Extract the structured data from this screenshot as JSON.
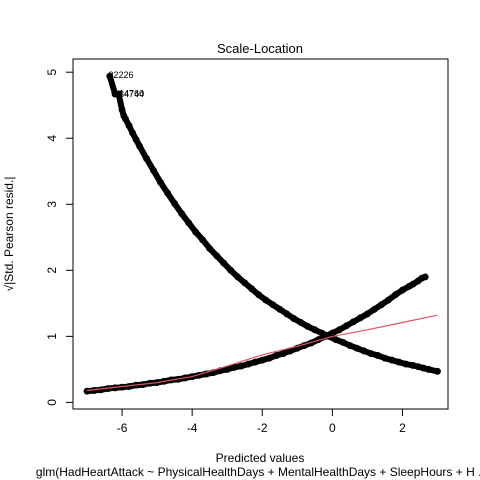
{
  "chart_data": {
    "type": "scatter",
    "title": "Scale-Location",
    "xlabel": "Predicted values",
    "ylabel": "√|Std. Pearson resid.|",
    "subtitle": "glm(HadHeartAttack ~ PhysicalHealthDays + MentalHealthDays + SleepHours + H ...",
    "xlim": [
      -7.4,
      3.3
    ],
    "ylim": [
      -0.1,
      5.2
    ],
    "x_ticks": [
      -6,
      -4,
      -2,
      0,
      2
    ],
    "y_ticks": [
      0,
      1,
      2,
      3,
      4,
      5
    ],
    "x_tick_labels": [
      "-6",
      "-4",
      "-2",
      "0",
      "2"
    ],
    "y_tick_labels": [
      "0",
      "1",
      "2",
      "3",
      "4",
      "5"
    ],
    "point_color": "#000000",
    "smooth_color": "#DF536B",
    "grid": false,
    "annotations": [
      {
        "label": "32226",
        "x": -6.5,
        "y": 4.96
      },
      {
        "label": "14760",
        "x": -6.2,
        "y": 4.68
      },
      {
        "label": "34744",
        "x": -6.2,
        "y": 4.67
      }
    ],
    "series": [
      {
        "values_xy": [
          [
            -6.35,
            4.94
          ],
          [
            -6.2,
            4.67
          ],
          [
            -6.1,
            4.67
          ],
          [
            -6.0,
            4.43
          ],
          [
            -5.95,
            4.34
          ],
          [
            -5.9,
            4.29
          ],
          [
            -5.8,
            4.19
          ],
          [
            -5.7,
            4.08
          ],
          [
            -5.6,
            3.98
          ],
          [
            -5.5,
            3.88
          ],
          [
            -5.3,
            3.69
          ],
          [
            -5.1,
            3.51
          ],
          [
            -4.9,
            3.33
          ],
          [
            -4.7,
            3.17
          ],
          [
            -4.5,
            3.01
          ],
          [
            -4.3,
            2.86
          ],
          [
            -4.1,
            2.72
          ],
          [
            -3.9,
            2.58
          ],
          [
            -3.7,
            2.46
          ],
          [
            -3.5,
            2.33
          ],
          [
            -3.3,
            2.22
          ],
          [
            -3.1,
            2.11
          ],
          [
            -2.9,
            2.0
          ],
          [
            -2.7,
            1.9
          ],
          [
            -2.5,
            1.81
          ],
          [
            -2.3,
            1.72
          ],
          [
            -2.1,
            1.63
          ],
          [
            -1.9,
            1.55
          ],
          [
            -1.7,
            1.48
          ],
          [
            -1.5,
            1.41
          ],
          [
            -1.3,
            1.34
          ],
          [
            -1.1,
            1.27
          ],
          [
            -0.9,
            1.21
          ],
          [
            -0.7,
            1.15
          ],
          [
            -0.5,
            1.1
          ],
          [
            -0.3,
            1.05
          ],
          [
            -0.1,
            1.0
          ],
          [
            0.1,
            0.95
          ],
          [
            0.3,
            0.91
          ],
          [
            0.5,
            0.86
          ],
          [
            0.7,
            0.82
          ],
          [
            0.9,
            0.78
          ],
          [
            1.1,
            0.74
          ],
          [
            1.3,
            0.71
          ],
          [
            1.5,
            0.67
          ],
          [
            1.7,
            0.64
          ],
          [
            1.9,
            0.61
          ],
          [
            2.1,
            0.58
          ],
          [
            2.3,
            0.56
          ],
          [
            2.45,
            0.54
          ],
          [
            2.6,
            0.52
          ],
          [
            2.75,
            0.5
          ],
          [
            3.0,
            0.47
          ]
        ]
      },
      {
        "values_xy": [
          [
            -7.0,
            0.17
          ],
          [
            -6.8,
            0.18
          ],
          [
            -6.6,
            0.19
          ],
          [
            -6.4,
            0.21
          ],
          [
            -6.2,
            0.22
          ],
          [
            -6.0,
            0.23
          ],
          [
            -5.8,
            0.24
          ],
          [
            -5.6,
            0.26
          ],
          [
            -5.4,
            0.27
          ],
          [
            -5.2,
            0.29
          ],
          [
            -5.0,
            0.3
          ],
          [
            -4.8,
            0.32
          ],
          [
            -4.6,
            0.34
          ],
          [
            -4.4,
            0.35
          ],
          [
            -4.2,
            0.37
          ],
          [
            -4.0,
            0.39
          ],
          [
            -3.8,
            0.41
          ],
          [
            -3.6,
            0.43
          ],
          [
            -3.4,
            0.45
          ],
          [
            -3.2,
            0.48
          ],
          [
            -3.0,
            0.5
          ],
          [
            -2.8,
            0.53
          ],
          [
            -2.6,
            0.55
          ],
          [
            -2.4,
            0.58
          ],
          [
            -2.2,
            0.61
          ],
          [
            -2.0,
            0.64
          ],
          [
            -1.8,
            0.67
          ],
          [
            -1.6,
            0.71
          ],
          [
            -1.4,
            0.74
          ],
          [
            -1.2,
            0.78
          ],
          [
            -1.0,
            0.82
          ],
          [
            -0.8,
            0.86
          ],
          [
            -0.6,
            0.9
          ],
          [
            -0.4,
            0.95
          ],
          [
            -0.2,
            1.0
          ],
          [
            0.0,
            1.05
          ],
          [
            0.2,
            1.1
          ],
          [
            0.4,
            1.16
          ],
          [
            0.6,
            1.22
          ],
          [
            0.8,
            1.28
          ],
          [
            1.0,
            1.34
          ],
          [
            1.2,
            1.41
          ],
          [
            1.4,
            1.48
          ],
          [
            1.6,
            1.55
          ],
          [
            1.8,
            1.63
          ],
          [
            2.0,
            1.7
          ],
          [
            2.2,
            1.76
          ],
          [
            2.3,
            1.79
          ],
          [
            2.45,
            1.84
          ],
          [
            2.55,
            1.88
          ],
          [
            2.65,
            1.9
          ]
        ]
      }
    ],
    "smooth_line": [
      [
        -7.0,
        0.18
      ],
      [
        -6.0,
        0.24
      ],
      [
        -5.0,
        0.3
      ],
      [
        -4.0,
        0.39
      ],
      [
        -3.0,
        0.55
      ],
      [
        -2.0,
        0.72
      ],
      [
        -1.0,
        0.85
      ],
      [
        0.0,
        1.0
      ],
      [
        1.0,
        1.1
      ],
      [
        2.0,
        1.21
      ],
      [
        3.0,
        1.32
      ]
    ]
  }
}
